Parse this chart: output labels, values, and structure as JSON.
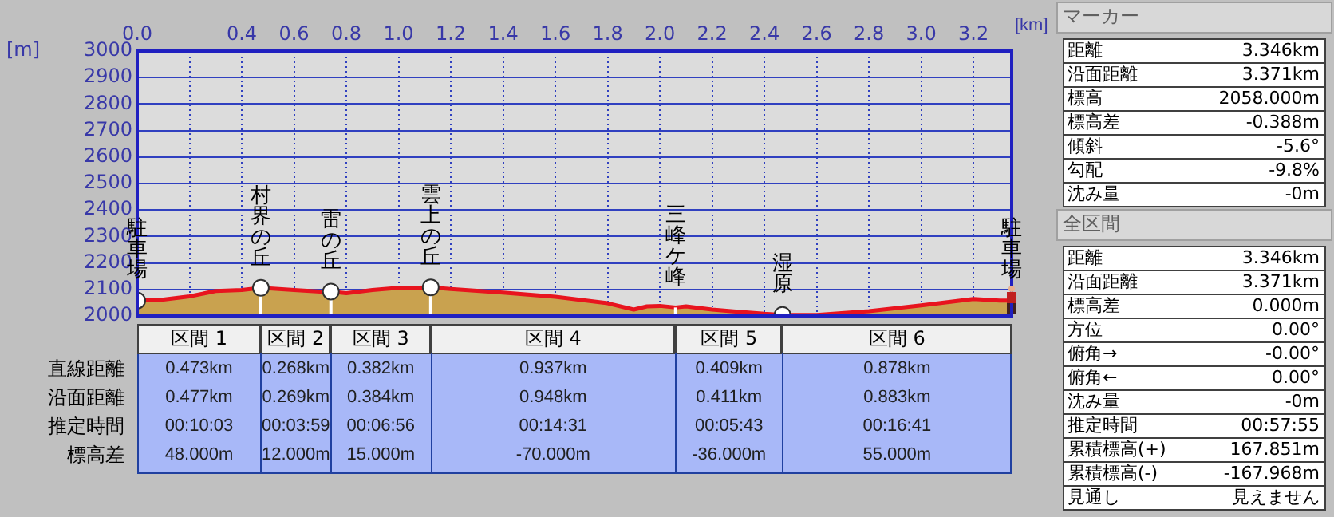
{
  "chart_data": {
    "type": "area",
    "xlabel": "[km]",
    "ylabel": "[m]",
    "xlim": [
      0,
      3.346
    ],
    "ylim": [
      2000,
      3000
    ],
    "xticks": [
      {
        "value": 0,
        "label": "0.0"
      },
      {
        "value": 0.2,
        "label": null
      },
      0.4,
      0.6,
      0.8,
      {
        "value": 1,
        "label": "1.0"
      },
      1.2,
      1.4,
      1.6,
      1.8,
      {
        "value": 2,
        "label": "2.0"
      },
      2.2,
      2.4,
      2.6,
      2.8,
      {
        "value": 3,
        "label": "3.0"
      },
      3.2
    ],
    "yticks": [
      2000,
      2100,
      2200,
      2300,
      2400,
      2500,
      2600,
      2700,
      2800,
      2900,
      3000
    ],
    "grid": true,
    "legend": false,
    "series": [
      {
        "color": "#c9a24f",
        "x": [
          0,
          0.1,
          0.2,
          0.3,
          0.4,
          0.473,
          0.6,
          0.7,
          0.741,
          0.8,
          0.9,
          1.0,
          1.123,
          1.2,
          1.4,
          1.6,
          1.8,
          1.9,
          1.95,
          2.0,
          2.06,
          2.1,
          2.2,
          2.3,
          2.4,
          2.469,
          2.6,
          2.8,
          3.0,
          3.2,
          3.3,
          3.346
        ],
        "values": [
          2058,
          2062,
          2074,
          2094,
          2098,
          2106,
          2098,
          2092,
          2092,
          2086,
          2098,
          2106,
          2108,
          2102,
          2088,
          2072,
          2048,
          2024,
          2036,
          2038,
          2032,
          2036,
          2024,
          2016,
          2008,
          2004,
          2004,
          2018,
          2040,
          2064,
          2058,
          2058
        ]
      },
      {
        "type": "scatter",
        "marker": "circle",
        "color": "#ffffff",
        "x": [
          0,
          0.473,
          0.741,
          1.123,
          2.469
        ],
        "values": [
          2058,
          2106,
          2092,
          2108,
          2004
        ]
      }
    ],
    "annotations": [
      {
        "text": "駐車場",
        "x": 0,
        "y": 2058
      },
      {
        "text": "村界の丘",
        "x": 0.473,
        "y": 2106
      },
      {
        "text": "雷の丘",
        "x": 0.741,
        "y": 2092
      },
      {
        "text": "雲上の丘",
        "x": 1.123,
        "y": 2108
      },
      {
        "text": "三峰ケ峰",
        "x": 2.06,
        "y": 2032
      },
      {
        "text": "湿原",
        "x": 2.469,
        "y": 2004
      },
      {
        "text": "駐車場",
        "x": 3.346,
        "y": 2058
      },
      "区間 1",
      "区間 2",
      "区間 3",
      "区間 4",
      "区間 5",
      "区間 6",
      "直線距離",
      "沿面距離",
      "推定時間",
      "標高差",
      "0.473km",
      "0.268km",
      "0.382km",
      "0.937km",
      "0.409km",
      "0.878km",
      "0.477km",
      "0.269km",
      "0.384km",
      "0.948km",
      "0.411km",
      "0.883km",
      "00:10:03",
      "00:03:59",
      "00:06:56",
      "00:14:31",
      "00:05:43",
      "00:16:41",
      "48.000m",
      "12.000m",
      "15.000m",
      "-70.000m",
      "-36.000m",
      "55.000m",
      "マーカー",
      "距離",
      "3.346km",
      "沿面距離",
      "3.371km",
      "標高",
      "2058.000m",
      "標高差",
      "-0.388m",
      "傾斜",
      "-5.6°",
      "勾配",
      "-9.8%",
      "沈み量",
      "-0m",
      "全区間",
      "距離",
      "3.346km",
      "沿面距離",
      "3.371km",
      "標高差",
      "0.000m",
      "方位",
      "0.00°",
      "俯角→",
      "-0.00°",
      "俯角←",
      "0.00°",
      "沈み量",
      "-0m",
      "推定時間",
      "00:57:55",
      "累積標高(+)",
      "167.851m",
      "累積標高(-)",
      "-167.968m",
      "見通し",
      "見えません"
    ]
  }
}
